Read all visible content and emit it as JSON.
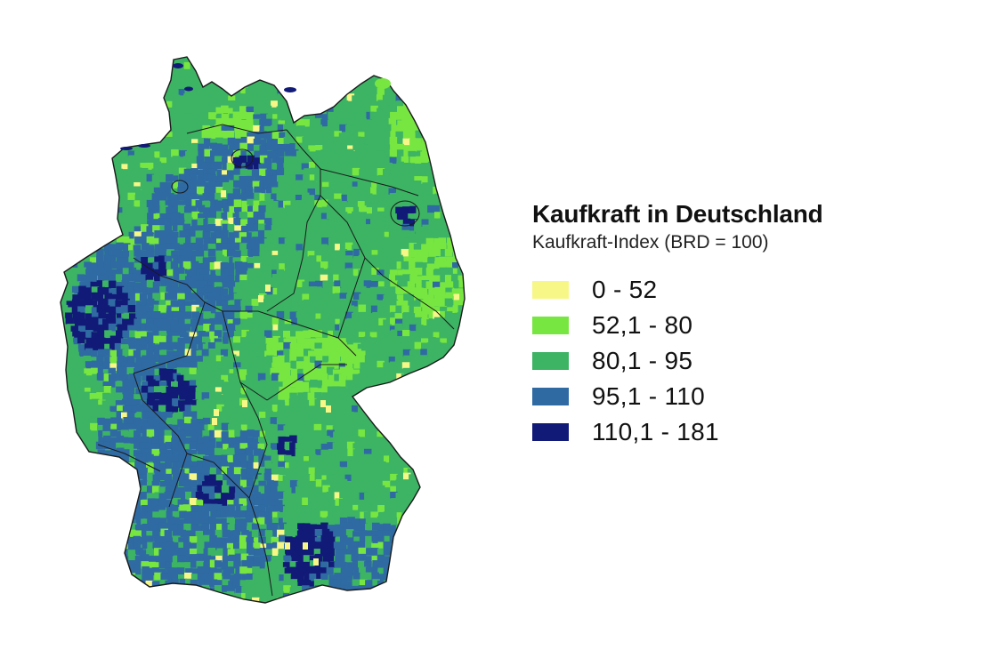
{
  "legend": {
    "title": "Kaufkraft in Deutschland",
    "subtitle": "Kaufkraft-Index (BRD = 100)",
    "classes": [
      {
        "label": "0 - 52",
        "color": "#f7f787"
      },
      {
        "label": "52,1 - 80",
        "color": "#78e641"
      },
      {
        "label": "80,1 - 95",
        "color": "#3cb464"
      },
      {
        "label": "95,1 - 110",
        "color": "#2f6aa3"
      },
      {
        "label": "110,1 - 181",
        "color": "#121a78"
      }
    ]
  },
  "map": {
    "colors": {
      "lowest": "#f7f787",
      "low": "#78e641",
      "medium": "#3cb464",
      "high": "#2f6aa3",
      "highest": "#121a78",
      "border": "#1a1a1a"
    }
  }
}
